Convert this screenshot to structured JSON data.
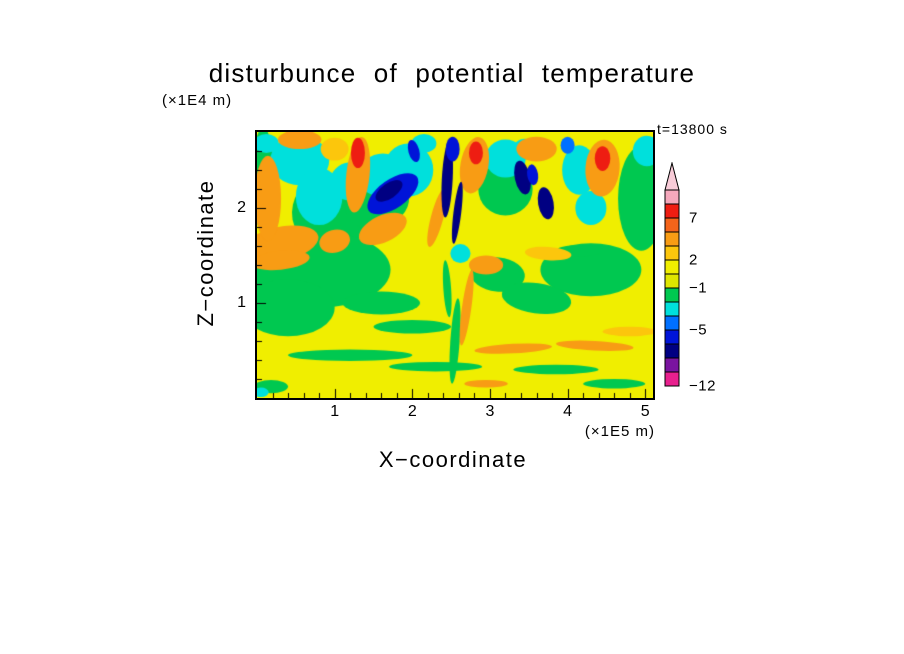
{
  "chart_data": {
    "type": "filled-contour",
    "title": "disturbunce of potential temperature",
    "time_label": "t=13800 s",
    "x_axis": {
      "label": "X−coordinate",
      "units": "(×1E5 m)",
      "range": [
        0,
        5.1
      ],
      "major_ticks": [
        1,
        2,
        3,
        4,
        5
      ],
      "minor_tick_step": 0.2
    },
    "z_axis": {
      "label": "Z−coordinate",
      "units": "(×1E4 m)",
      "range": [
        0,
        2.8
      ],
      "major_ticks": [
        1,
        2
      ],
      "minor_tick_step": 0.2
    },
    "labeled_levels": [
      7,
      2,
      -1,
      -5,
      -12
    ],
    "background": "yellow",
    "palette": {
      "pink": "#f5a8bc",
      "red": "#ee1d12",
      "orangered": "#f4641a",
      "orange": "#f89c14",
      "amber": "#fcc60c",
      "yellow": "#f0ee00",
      "yellowgreen": "#dfe600",
      "green": "#00c850",
      "cyan": "#00e0dc",
      "blue": "#0070ff",
      "darkblue": "#0014d8",
      "navy": "#000082",
      "purple": "#7a14a0",
      "magenta": "#e8208e"
    },
    "colorbar": {
      "arrow_color": "#f8ccd8",
      "segments_top_to_bottom": [
        "pink",
        "red",
        "orangered",
        "orange",
        "amber",
        "yellow",
        "yellowgreen",
        "green",
        "cyan",
        "blue",
        "darkblue",
        "navy",
        "purple",
        "magenta"
      ],
      "tick_labels": [
        {
          "label": "7",
          "boundary": 2
        },
        {
          "label": "2",
          "boundary": 5
        },
        {
          "label": "−1",
          "boundary": 7
        },
        {
          "label": "−5",
          "boundary": 10
        },
        {
          "label": "−12",
          "boundary": 14
        }
      ]
    },
    "features": [
      {
        "x": 0.08,
        "z": 2.3,
        "rx": 0.14,
        "ry": 0.55,
        "rot": 0,
        "color": "green"
      },
      {
        "x": 0.95,
        "z": 1.95,
        "rx": 0.5,
        "ry": 0.4,
        "rot": -10,
        "color": "green"
      },
      {
        "x": 1.55,
        "z": 2.05,
        "rx": 0.42,
        "ry": 0.26,
        "rot": -20,
        "color": "green"
      },
      {
        "x": 0.8,
        "z": 1.35,
        "rx": 0.92,
        "ry": 0.4,
        "rot": 0,
        "color": "green"
      },
      {
        "x": 0.4,
        "z": 0.95,
        "rx": 0.6,
        "ry": 0.3,
        "rot": 0,
        "color": "green"
      },
      {
        "x": 1.6,
        "z": 1.0,
        "rx": 0.5,
        "ry": 0.12,
        "rot": 0,
        "color": "green"
      },
      {
        "x": 4.3,
        "z": 1.35,
        "rx": 0.65,
        "ry": 0.28,
        "rot": 0,
        "color": "green"
      },
      {
        "x": 3.1,
        "z": 1.3,
        "rx": 0.35,
        "ry": 0.18,
        "rot": 5,
        "color": "green"
      },
      {
        "x": 3.6,
        "z": 1.05,
        "rx": 0.45,
        "ry": 0.16,
        "rot": 8,
        "color": "green"
      },
      {
        "x": 4.95,
        "z": 2.1,
        "rx": 0.3,
        "ry": 0.55,
        "rot": 0,
        "color": "green"
      },
      {
        "x": 3.2,
        "z": 2.2,
        "rx": 0.35,
        "ry": 0.28,
        "rot": 0,
        "color": "green"
      },
      {
        "x": 2.0,
        "z": 0.75,
        "rx": 0.5,
        "ry": 0.07,
        "rot": 0,
        "color": "green"
      },
      {
        "x": 1.2,
        "z": 0.45,
        "rx": 0.8,
        "ry": 0.06,
        "rot": 0,
        "color": "green"
      },
      {
        "x": 2.3,
        "z": 0.33,
        "rx": 0.6,
        "ry": 0.05,
        "rot": 0,
        "color": "green"
      },
      {
        "x": 3.85,
        "z": 0.3,
        "rx": 0.55,
        "ry": 0.05,
        "rot": 0,
        "color": "green"
      },
      {
        "x": 4.6,
        "z": 0.15,
        "rx": 0.4,
        "ry": 0.05,
        "rot": 0,
        "color": "green"
      },
      {
        "x": 0.18,
        "z": 0.12,
        "rx": 0.22,
        "ry": 0.07,
        "rot": 0,
        "color": "green"
      },
      {
        "x": 2.55,
        "z": 0.6,
        "rx": 0.06,
        "ry": 0.45,
        "rot": 4,
        "color": "green"
      },
      {
        "x": 2.45,
        "z": 1.15,
        "rx": 0.05,
        "ry": 0.3,
        "rot": -4,
        "color": "green"
      },
      {
        "x": 4.15,
        "z": 1.55,
        "rx": 0.3,
        "ry": 0.06,
        "rot": 0,
        "color": "green"
      },
      {
        "x": 0.55,
        "z": 2.5,
        "rx": 0.38,
        "ry": 0.26,
        "rot": 0,
        "color": "cyan"
      },
      {
        "x": 0.8,
        "z": 2.12,
        "rx": 0.3,
        "ry": 0.3,
        "rot": 0,
        "color": "cyan"
      },
      {
        "x": 1.2,
        "z": 2.28,
        "rx": 0.26,
        "ry": 0.2,
        "rot": -15,
        "color": "cyan"
      },
      {
        "x": 1.6,
        "z": 2.35,
        "rx": 0.3,
        "ry": 0.22,
        "rot": -20,
        "color": "cyan"
      },
      {
        "x": 1.95,
        "z": 2.4,
        "rx": 0.32,
        "ry": 0.28,
        "rot": 0,
        "color": "cyan"
      },
      {
        "x": 3.2,
        "z": 2.52,
        "rx": 0.26,
        "ry": 0.2,
        "rot": 0,
        "color": "cyan"
      },
      {
        "x": 4.15,
        "z": 2.4,
        "rx": 0.22,
        "ry": 0.26,
        "rot": 0,
        "color": "cyan"
      },
      {
        "x": 4.3,
        "z": 2.0,
        "rx": 0.2,
        "ry": 0.18,
        "rot": 0,
        "color": "cyan"
      },
      {
        "x": 5.02,
        "z": 2.6,
        "rx": 0.18,
        "ry": 0.16,
        "rot": 0,
        "color": "cyan"
      },
      {
        "x": 0.12,
        "z": 2.68,
        "rx": 0.16,
        "ry": 0.1,
        "rot": 0,
        "color": "cyan"
      },
      {
        "x": 2.62,
        "z": 1.52,
        "rx": 0.13,
        "ry": 0.1,
        "rot": 0,
        "color": "cyan"
      },
      {
        "x": 2.15,
        "z": 2.68,
        "rx": 0.16,
        "ry": 0.1,
        "rot": 0,
        "color": "cyan"
      },
      {
        "x": 3.45,
        "z": 2.62,
        "rx": 0.15,
        "ry": 0.11,
        "rot": 0,
        "color": "cyan"
      },
      {
        "x": 0.05,
        "z": 0.06,
        "rx": 0.1,
        "ry": 0.05,
        "rot": 0,
        "color": "cyan"
      },
      {
        "x": 0.3,
        "z": 1.62,
        "rx": 0.5,
        "ry": 0.18,
        "rot": -12,
        "color": "orange"
      },
      {
        "x": 0.14,
        "z": 2.1,
        "rx": 0.17,
        "ry": 0.45,
        "rot": 0,
        "color": "orange"
      },
      {
        "x": 0.55,
        "z": 2.72,
        "rx": 0.28,
        "ry": 0.1,
        "rot": 0,
        "color": "orange"
      },
      {
        "x": 1.3,
        "z": 2.35,
        "rx": 0.15,
        "ry": 0.4,
        "rot": 6,
        "color": "orange"
      },
      {
        "x": 1.62,
        "z": 1.78,
        "rx": 0.33,
        "ry": 0.14,
        "rot": -25,
        "color": "orange"
      },
      {
        "x": 1.0,
        "z": 1.65,
        "rx": 0.2,
        "ry": 0.12,
        "rot": -15,
        "color": "orange"
      },
      {
        "x": 2.8,
        "z": 2.45,
        "rx": 0.18,
        "ry": 0.3,
        "rot": 10,
        "color": "orange"
      },
      {
        "x": 2.32,
        "z": 1.9,
        "rx": 0.08,
        "ry": 0.32,
        "rot": 15,
        "color": "orange"
      },
      {
        "x": 3.6,
        "z": 2.62,
        "rx": 0.26,
        "ry": 0.13,
        "rot": 0,
        "color": "orange"
      },
      {
        "x": 4.45,
        "z": 2.42,
        "rx": 0.22,
        "ry": 0.3,
        "rot": 4,
        "color": "orange"
      },
      {
        "x": 0.3,
        "z": 1.45,
        "rx": 0.38,
        "ry": 0.1,
        "rot": -6,
        "color": "orange"
      },
      {
        "x": 2.95,
        "z": 1.4,
        "rx": 0.22,
        "ry": 0.1,
        "rot": 0,
        "color": "orange"
      },
      {
        "x": 3.3,
        "z": 0.52,
        "rx": 0.5,
        "ry": 0.05,
        "rot": -3,
        "color": "orange"
      },
      {
        "x": 4.35,
        "z": 0.55,
        "rx": 0.5,
        "ry": 0.05,
        "rot": 3,
        "color": "orange"
      },
      {
        "x": 2.95,
        "z": 0.15,
        "rx": 0.28,
        "ry": 0.04,
        "rot": 0,
        "color": "orange"
      },
      {
        "x": 2.7,
        "z": 0.95,
        "rx": 0.06,
        "ry": 0.4,
        "rot": 8,
        "color": "orange"
      },
      {
        "x": 3.75,
        "z": 1.52,
        "rx": 0.3,
        "ry": 0.07,
        "rot": 4,
        "color": "amber"
      },
      {
        "x": 4.8,
        "z": 0.7,
        "rx": 0.35,
        "ry": 0.05,
        "rot": 0,
        "color": "amber"
      },
      {
        "x": 1.0,
        "z": 2.62,
        "rx": 0.18,
        "ry": 0.12,
        "rot": 0,
        "color": "amber"
      },
      {
        "x": 1.3,
        "z": 2.58,
        "rx": 0.09,
        "ry": 0.16,
        "rot": 0,
        "color": "red"
      },
      {
        "x": 2.82,
        "z": 2.58,
        "rx": 0.09,
        "ry": 0.12,
        "rot": 0,
        "color": "red"
      },
      {
        "x": 4.45,
        "z": 2.52,
        "rx": 0.1,
        "ry": 0.13,
        "rot": 0,
        "color": "red"
      },
      {
        "x": 1.75,
        "z": 2.15,
        "rx": 0.38,
        "ry": 0.15,
        "rot": -35,
        "color": "darkblue"
      },
      {
        "x": 1.7,
        "z": 2.18,
        "rx": 0.2,
        "ry": 0.08,
        "rot": -35,
        "color": "navy"
      },
      {
        "x": 2.45,
        "z": 2.3,
        "rx": 0.07,
        "ry": 0.4,
        "rot": 3,
        "color": "navy"
      },
      {
        "x": 2.58,
        "z": 1.95,
        "rx": 0.05,
        "ry": 0.33,
        "rot": 7,
        "color": "navy"
      },
      {
        "x": 2.52,
        "z": 2.62,
        "rx": 0.09,
        "ry": 0.13,
        "rot": 0,
        "color": "darkblue"
      },
      {
        "x": 3.42,
        "z": 2.32,
        "rx": 0.1,
        "ry": 0.18,
        "rot": -12,
        "color": "navy"
      },
      {
        "x": 3.72,
        "z": 2.05,
        "rx": 0.1,
        "ry": 0.17,
        "rot": -10,
        "color": "navy"
      },
      {
        "x": 4.0,
        "z": 2.66,
        "rx": 0.09,
        "ry": 0.09,
        "rot": 0,
        "color": "blue"
      },
      {
        "x": 2.02,
        "z": 2.6,
        "rx": 0.07,
        "ry": 0.12,
        "rot": -15,
        "color": "darkblue"
      },
      {
        "x": 3.55,
        "z": 2.35,
        "rx": 0.07,
        "ry": 0.11,
        "rot": -8,
        "color": "darkblue"
      }
    ]
  }
}
